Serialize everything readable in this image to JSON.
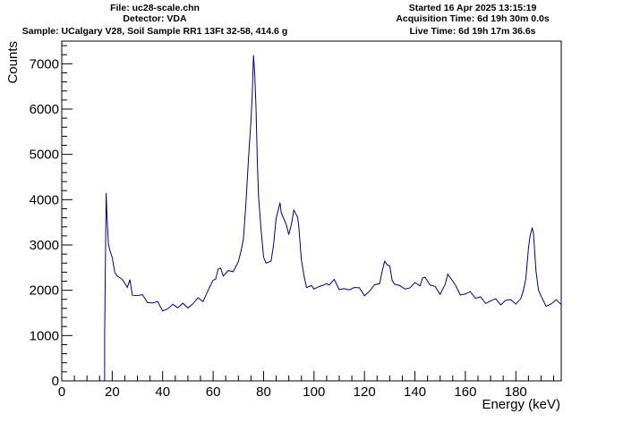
{
  "header": {
    "file": "File: uc28-scale.chn",
    "detector": "Detector: VDA",
    "sample": "Sample: UCalgary V28, Soil Sample RR1 13Ft 32-58, 414.6 g",
    "started": "Started 16 Apr 2025 13:15:19",
    "acquisition_time": "Acquisition Time: 6d 19h 30m 0.0s",
    "live_time": "Live Time: 6d 19h 17m 36.6s"
  },
  "chart_data": {
    "type": "line",
    "title": "",
    "xlabel": "Energy (keV)",
    "ylabel": "Counts",
    "xlim": [
      0,
      198
    ],
    "ylim": [
      0,
      7500
    ],
    "x_ticks": [
      0,
      20,
      40,
      60,
      80,
      100,
      120,
      140,
      160,
      180
    ],
    "y_ticks": [
      0,
      1000,
      2000,
      3000,
      4000,
      5000,
      6000,
      7000
    ],
    "grid": false,
    "line_color": "#000080",
    "series": [
      {
        "x": [
          17,
          17.6,
          18,
          18.5,
          19,
          20,
          21,
          22,
          24,
          26,
          27,
          28,
          30,
          32,
          34,
          36,
          38,
          40,
          42,
          44,
          46,
          48,
          50,
          52,
          54,
          56,
          58,
          60,
          61,
          62,
          63,
          64,
          66,
          68,
          70,
          71,
          72,
          73,
          74,
          75,
          75.5,
          76,
          76.5,
          77,
          77.5,
          78,
          79,
          80,
          81,
          82,
          83,
          84,
          85,
          86,
          86.5,
          87,
          88,
          89,
          90,
          91,
          92,
          92.7,
          93.5,
          94,
          95,
          96,
          97,
          98,
          99,
          100,
          102,
          104,
          105,
          106,
          108,
          110,
          112,
          114,
          116,
          118,
          120,
          122,
          124,
          126,
          127,
          128,
          129,
          130,
          131,
          132,
          134,
          136,
          138,
          140,
          142,
          143,
          144,
          146,
          148,
          150,
          152,
          153,
          154,
          155,
          156,
          158,
          160,
          162,
          164,
          166,
          168,
          170,
          172,
          174,
          176,
          178,
          180,
          182,
          183,
          184,
          185,
          185.7,
          186.5,
          187,
          188,
          189,
          190,
          192,
          194,
          196,
          198
        ],
        "y": [
          1000,
          4150,
          3500,
          3100,
          2900,
          2650,
          2450,
          2300,
          2150,
          2100,
          2200,
          1980,
          1900,
          1850,
          1800,
          1720,
          1680,
          1600,
          1570,
          1600,
          1650,
          1680,
          1700,
          1720,
          1780,
          1820,
          2000,
          2150,
          2300,
          2450,
          2400,
          2350,
          2400,
          2500,
          2650,
          2800,
          3200,
          3900,
          4800,
          5800,
          6300,
          7100,
          6800,
          6000,
          5000,
          4100,
          3300,
          2800,
          2600,
          2550,
          2700,
          3000,
          3500,
          3850,
          3900,
          3800,
          3600,
          3400,
          3300,
          3450,
          3700,
          3750,
          3600,
          3300,
          2700,
          2300,
          2150,
          2100,
          2050,
          2100,
          2080,
          2050,
          2200,
          2100,
          2150,
          2050,
          2000,
          2100,
          2080,
          2000,
          1950,
          1980,
          2050,
          2200,
          2400,
          2550,
          2600,
          2500,
          2300,
          2150,
          2050,
          2100,
          2050,
          2100,
          2150,
          2250,
          2200,
          2150,
          2050,
          2000,
          2150,
          2300,
          2350,
          2200,
          2050,
          1950,
          1900,
          1880,
          1860,
          1820,
          1800,
          1780,
          1760,
          1750,
          1780,
          1720,
          1750,
          1800,
          1900,
          2300,
          2900,
          3300,
          3400,
          3200,
          2500,
          2000,
          1800,
          1700,
          1680,
          1700,
          1720
        ]
      }
    ]
  }
}
